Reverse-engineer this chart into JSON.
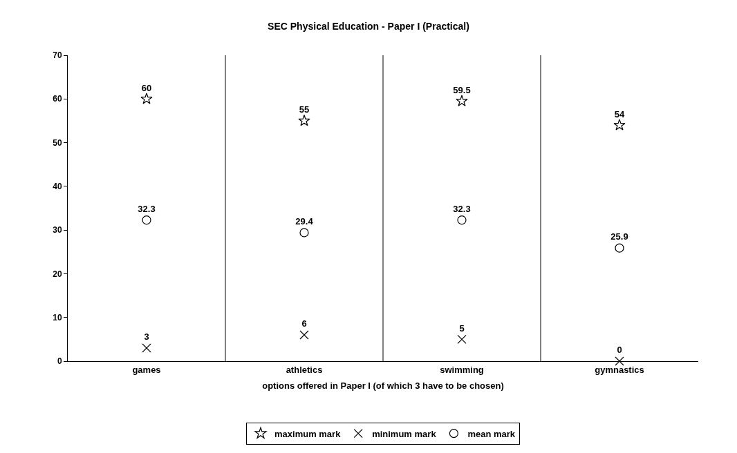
{
  "chart_data": {
    "type": "scatter",
    "title": "SEC Physical Education - Paper I (Practical)",
    "xlabel": "options offered in Paper I (of which 3 have to be chosen)",
    "categories": [
      "games",
      "athletics",
      "swimming",
      "gymnastics"
    ],
    "series": [
      {
        "name": "maximum mark",
        "color": "#000000",
        "marker": "star",
        "values": [
          60,
          55,
          59.5,
          54
        ]
      },
      {
        "name": "minimum mark",
        "color": "#000000",
        "marker": "cross",
        "values": [
          3,
          6,
          5,
          0
        ]
      },
      {
        "name": "mean mark",
        "color": "#000000",
        "marker": "circle",
        "values": [
          32.3,
          29.4,
          32.3,
          25.9
        ]
      }
    ],
    "ylim": [
      0,
      70
    ],
    "yticks": [
      0,
      10,
      20,
      30,
      40,
      50,
      60,
      70
    ],
    "grid": "x",
    "legend": "bottom",
    "data_labels": true
  }
}
